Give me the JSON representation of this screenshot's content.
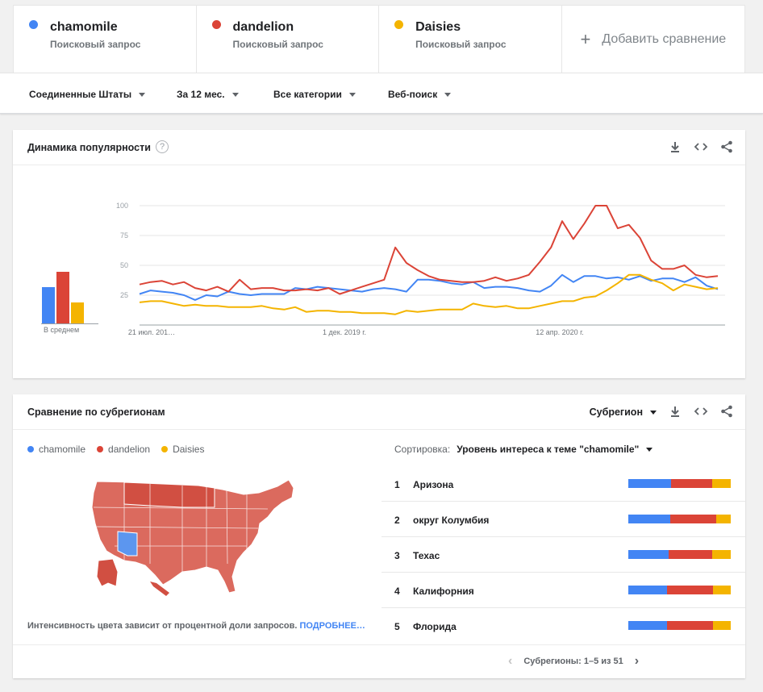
{
  "colors": {
    "blue": "#4285f4",
    "red": "#db4437",
    "yellow": "#f4b400"
  },
  "terms": [
    {
      "name": "chamomile",
      "sub": "Поисковый запрос",
      "color": "#4285f4"
    },
    {
      "name": "dandelion",
      "sub": "Поисковый запрос",
      "color": "#db4437"
    },
    {
      "name": "Daisies",
      "sub": "Поисковый запрос",
      "color": "#f4b400"
    }
  ],
  "add_compare": "Добавить сравнение",
  "filters": {
    "region": "Соединенные Штаты",
    "period": "За 12 мес.",
    "category": "Все категории",
    "search_type": "Веб-поиск"
  },
  "popularity": {
    "title": "Динамика популярности",
    "avg_label": "В среднем",
    "chart_data": {
      "type": "line",
      "x_labels": [
        "21 июл. 201…",
        "1 дек. 2019 г.",
        "12 апр. 2020 г."
      ],
      "yticks": [
        25,
        50,
        75,
        100
      ],
      "ylim": [
        0,
        100
      ],
      "averages": {
        "chamomile": 31,
        "dandelion": 44,
        "Daisies": 18
      },
      "series": [
        {
          "name": "chamomile",
          "color": "#4285f4",
          "values": [
            26,
            29,
            28,
            27,
            25,
            21,
            25,
            24,
            28,
            26,
            25,
            26,
            26,
            26,
            31,
            30,
            32,
            31,
            30,
            29,
            28,
            30,
            31,
            30,
            28,
            38,
            38,
            37,
            35,
            34,
            36,
            31,
            32,
            32,
            31,
            29,
            28,
            33,
            42,
            36,
            41,
            41,
            39,
            40,
            38,
            41,
            37,
            39,
            39,
            36,
            40,
            33,
            30
          ]
        },
        {
          "name": "dandelion",
          "color": "#db4437",
          "values": [
            34,
            36,
            37,
            34,
            36,
            31,
            29,
            32,
            28,
            38,
            30,
            31,
            31,
            29,
            29,
            30,
            29,
            31,
            26,
            29,
            32,
            35,
            38,
            65,
            52,
            46,
            41,
            38,
            37,
            36,
            36,
            37,
            40,
            37,
            39,
            42,
            53,
            65,
            87,
            72,
            85,
            100,
            100,
            81,
            84,
            73,
            54,
            47,
            47,
            50,
            42,
            40,
            41
          ]
        },
        {
          "name": "Daisies",
          "color": "#f4b400",
          "values": [
            19,
            20,
            20,
            18,
            16,
            17,
            16,
            16,
            15,
            15,
            15,
            16,
            14,
            13,
            15,
            11,
            12,
            12,
            11,
            11,
            10,
            10,
            10,
            9,
            12,
            11,
            12,
            13,
            13,
            13,
            18,
            16,
            15,
            16,
            14,
            14,
            16,
            18,
            20,
            20,
            23,
            24,
            29,
            35,
            42,
            42,
            38,
            35,
            29,
            34,
            32,
            30,
            31
          ]
        }
      ]
    }
  },
  "subregions": {
    "title": "Сравнение по субрегионам",
    "selector": "Субрегион",
    "legend": [
      "chamomile",
      "dandelion",
      "Daisies"
    ],
    "sort_label": "Сортировка:",
    "sort_value": "Уровень интереса к теме \"chamomile\"",
    "rows": [
      {
        "rank": "1",
        "name": "Аризона",
        "split": [
          42,
          40,
          18
        ]
      },
      {
        "rank": "2",
        "name": "округ Колумбия",
        "split": [
          41,
          45,
          14
        ]
      },
      {
        "rank": "3",
        "name": "Техас",
        "split": [
          39,
          43,
          18
        ]
      },
      {
        "rank": "4",
        "name": "Калифорния",
        "split": [
          38,
          45,
          17
        ]
      },
      {
        "rank": "5",
        "name": "Флорида",
        "split": [
          38,
          45,
          17
        ]
      }
    ],
    "note": "Интенсивность цвета зависит от процентной доли запросов.",
    "note_link": "ПОДРОБНЕЕ…",
    "pager": "Субрегионы: 1–5 из 51"
  }
}
